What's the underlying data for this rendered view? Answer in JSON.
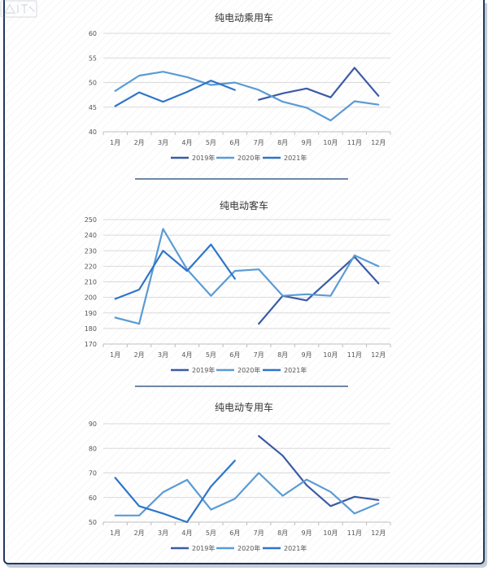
{
  "chart_data": [
    {
      "type": "line",
      "title": "纯电动乘用车",
      "categories": [
        "1月",
        "2月",
        "3月",
        "4月",
        "5月",
        "6月",
        "7月",
        "8月",
        "9月",
        "10月",
        "11月",
        "12月"
      ],
      "ylim": [
        40,
        60
      ],
      "yticks": [
        40,
        45,
        50,
        55,
        60
      ],
      "grid": true,
      "legend": "bottom",
      "series": [
        {
          "name": "2019年",
          "color": "#3b5ba5",
          "values": [
            null,
            null,
            null,
            null,
            null,
            null,
            46.5,
            47.8,
            48.8,
            47.0,
            53.0,
            47.3
          ]
        },
        {
          "name": "2020年",
          "color": "#5b9bd5",
          "values": [
            48.3,
            51.4,
            52.2,
            51.1,
            49.5,
            50.0,
            48.5,
            46.1,
            44.9,
            42.3,
            46.2,
            45.5
          ]
        },
        {
          "name": "2021年",
          "color": "#2e75c9",
          "values": [
            45.2,
            48.0,
            46.1,
            48.1,
            50.4,
            48.5,
            null,
            null,
            null,
            null,
            null,
            null
          ]
        }
      ]
    },
    {
      "type": "line",
      "title": "纯电动客车",
      "categories": [
        "1月",
        "2月",
        "3月",
        "4月",
        "5月",
        "6月",
        "7月",
        "8月",
        "9月",
        "10月",
        "11月",
        "12月"
      ],
      "ylim": [
        170,
        250
      ],
      "yticks": [
        170,
        180,
        190,
        200,
        210,
        220,
        230,
        240,
        250
      ],
      "grid": true,
      "legend": "bottom",
      "series": [
        {
          "name": "2019年",
          "color": "#3b5ba5",
          "values": [
            null,
            null,
            null,
            null,
            null,
            null,
            183,
            201,
            198,
            212,
            226,
            209
          ]
        },
        {
          "name": "2020年",
          "color": "#5b9bd5",
          "values": [
            187,
            183,
            244,
            218,
            201,
            217,
            218,
            201,
            202,
            201,
            227,
            220
          ]
        },
        {
          "name": "2021年",
          "color": "#2e75c9",
          "values": [
            199,
            205,
            230,
            217,
            234,
            212,
            null,
            null,
            null,
            null,
            null,
            null
          ]
        }
      ]
    },
    {
      "type": "line",
      "title": "纯电动专用车",
      "categories": [
        "1月",
        "2月",
        "3月",
        "4月",
        "5月",
        "6月",
        "7月",
        "8月",
        "9月",
        "10月",
        "11月",
        "12月"
      ],
      "ylim": [
        50,
        90
      ],
      "yticks": [
        50,
        60,
        70,
        80,
        90
      ],
      "grid": true,
      "legend": "bottom",
      "series": [
        {
          "name": "2019年",
          "color": "#3b5ba5",
          "values": [
            null,
            null,
            null,
            null,
            null,
            null,
            85,
            77,
            65,
            56.5,
            60.3,
            59
          ]
        },
        {
          "name": "2020年",
          "color": "#5b9bd5",
          "values": [
            52.7,
            52.7,
            62.2,
            67.2,
            55.1,
            59.5,
            70,
            60.7,
            67.3,
            62.3,
            53.5,
            57.6
          ]
        },
        {
          "name": "2021年",
          "color": "#2e75c9",
          "values": [
            68,
            56.5,
            53.5,
            50,
            64.5,
            75,
            null,
            null,
            null,
            null,
            null,
            null
          ]
        }
      ]
    }
  ]
}
